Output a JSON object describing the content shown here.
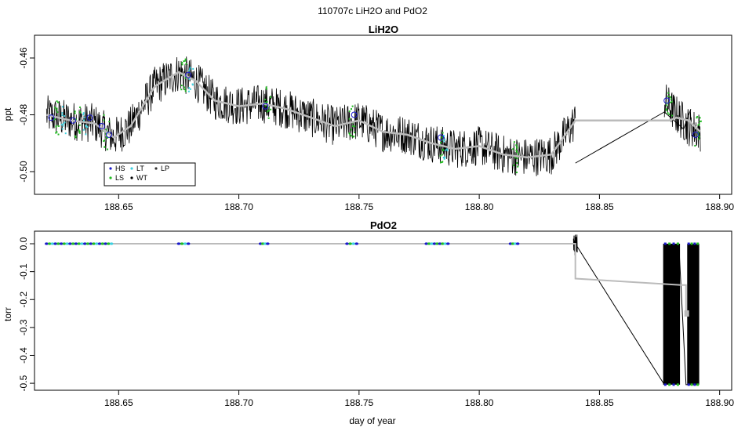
{
  "figure": {
    "supertitle": "110707c   LiH2O and PdO2",
    "xlabel": "day of year"
  },
  "chart_data": [
    {
      "type": "line",
      "title": "LiH2O",
      "ylabel": "ppt",
      "xlabel": "",
      "xlim": [
        188.615,
        188.905
      ],
      "ylim": [
        -0.508,
        -0.452
      ],
      "xticks": [
        188.65,
        188.7,
        188.75,
        188.8,
        188.85,
        188.9
      ],
      "xtick_labels": [
        "188.65",
        "188.70",
        "188.75",
        "188.80",
        "188.85",
        "188.90"
      ],
      "yticks": [
        -0.46,
        -0.48,
        -0.5
      ],
      "ytick_labels": [
        "-0.46",
        "-0.48",
        "-0.50"
      ],
      "legend": {
        "placement": "bottom-left",
        "entries": [
          {
            "label": "HS",
            "color": "#1a1acc"
          },
          {
            "label": "LT",
            "color": "#40d0e0"
          },
          {
            "label": "LP",
            "color": "#333333"
          },
          {
            "label": "LS",
            "color": "#22bb22"
          },
          {
            "label": "WT",
            "color": "#000000"
          }
        ]
      },
      "series": [
        {
          "role": "smoothed",
          "color": "#bbbbbb",
          "x": [
            188.62,
            188.63,
            188.64,
            188.648,
            188.655,
            188.665,
            188.675,
            188.682,
            188.69,
            188.7,
            188.71,
            188.72,
            188.73,
            188.74,
            188.75,
            188.76,
            188.77,
            188.78,
            188.79,
            188.8,
            188.81,
            188.82,
            188.83,
            188.84,
            188.879,
            188.882,
            188.887,
            188.892
          ],
          "y": [
            -0.48,
            -0.482,
            -0.483,
            -0.488,
            -0.484,
            -0.47,
            -0.465,
            -0.468,
            -0.475,
            -0.477,
            -0.476,
            -0.478,
            -0.481,
            -0.484,
            -0.482,
            -0.486,
            -0.487,
            -0.49,
            -0.492,
            -0.491,
            -0.494,
            -0.495,
            -0.494,
            -0.482,
            -0.482,
            -0.481,
            -0.482,
            -0.486
          ]
        },
        {
          "role": "raw",
          "color": "#000000",
          "noise_amplitude": 0.007,
          "x": [
            188.62,
            188.63,
            188.64,
            188.648,
            188.655,
            188.665,
            188.675,
            188.682,
            188.69,
            188.7,
            188.71,
            188.72,
            188.73,
            188.74,
            188.75,
            188.76,
            188.77,
            188.78,
            188.79,
            188.8,
            188.81,
            188.82,
            188.83,
            188.84,
            188.877,
            188.882,
            188.887,
            188.892
          ],
          "y": [
            -0.48,
            -0.482,
            -0.483,
            -0.488,
            -0.484,
            -0.47,
            -0.465,
            -0.468,
            -0.475,
            -0.477,
            -0.476,
            -0.478,
            -0.481,
            -0.484,
            -0.482,
            -0.486,
            -0.487,
            -0.49,
            -0.492,
            -0.491,
            -0.494,
            -0.495,
            -0.494,
            -0.482,
            -0.475,
            -0.48,
            -0.484,
            -0.486
          ]
        }
      ],
      "connector_lines": [
        {
          "color": "#000000",
          "x": [
            188.84,
            188.877
          ],
          "y": [
            -0.497,
            -0.479
          ]
        },
        {
          "color": "#000000",
          "x": [
            188.877,
            188.885
          ],
          "y": [
            -0.479,
            -0.485
          ]
        },
        {
          "color": "#000000",
          "x": [
            188.885,
            188.888
          ],
          "y": [
            -0.485,
            -0.478
          ]
        }
      ],
      "markers": [
        {
          "label": "HS",
          "x": 188.622,
          "y": -0.481
        },
        {
          "label": "HS",
          "x": 188.631,
          "y": -0.482
        },
        {
          "label": "HS",
          "x": 188.638,
          "y": -0.481
        },
        {
          "label": "HS",
          "x": 188.643,
          "y": -0.484
        },
        {
          "label": "HS",
          "x": 188.646,
          "y": -0.487
        },
        {
          "label": "HS",
          "x": 188.679,
          "y": -0.466
        },
        {
          "label": "HS",
          "x": 188.711,
          "y": -0.477
        },
        {
          "label": "HS",
          "x": 188.748,
          "y": -0.48
        },
        {
          "label": "HS",
          "x": 188.784,
          "y": -0.488
        },
        {
          "label": "HS",
          "x": 188.878,
          "y": -0.475
        },
        {
          "label": "HS",
          "x": 188.89,
          "y": -0.487
        }
      ],
      "ls_clusters": [
        188.624,
        188.633,
        188.645,
        188.677,
        188.712,
        188.747,
        188.784,
        188.815,
        188.879,
        188.891
      ],
      "lt_clusters": [
        188.627,
        188.636,
        188.68,
        188.786
      ]
    },
    {
      "type": "line",
      "title": "PdO2",
      "ylabel": "torr",
      "xlabel": "day of year",
      "xlim": [
        188.615,
        188.905
      ],
      "ylim": [
        -0.525,
        0.045
      ],
      "xticks": [
        188.65,
        188.7,
        188.75,
        188.8,
        188.85,
        188.9
      ],
      "xtick_labels": [
        "188.65",
        "188.70",
        "188.75",
        "188.80",
        "188.85",
        "188.90"
      ],
      "yticks": [
        0.0,
        -0.1,
        -0.2,
        -0.3,
        -0.4,
        -0.5
      ],
      "ytick_labels": [
        "0.0",
        "-0.1",
        "-0.2",
        "-0.3",
        "-0.4",
        "-0.5"
      ],
      "series": [
        {
          "role": "smoothed",
          "color": "#bbbbbb",
          "x": [
            188.62,
            188.84,
            188.84,
            188.884,
            188.886,
            188.886
          ],
          "y": [
            0.0,
            0.0,
            -0.125,
            -0.148,
            -0.148,
            -0.25
          ]
        },
        {
          "role": "raw",
          "color": "#000000",
          "x": [
            188.62,
            188.838,
            188.84,
            188.877,
            188.883,
            188.886,
            188.891
          ],
          "y": [
            0.0,
            0.0,
            -0.0,
            -0.505,
            0.0,
            -0.505,
            -0.505
          ]
        }
      ],
      "spike": {
        "x": 188.84,
        "ymin": -0.05,
        "ymax": 0.035
      },
      "blocks": [
        {
          "x0": 188.8765,
          "x1": 188.8835,
          "y0": -0.505,
          "y1": 0.0
        },
        {
          "x0": 188.8865,
          "x1": 188.8915,
          "y0": -0.505,
          "y1": 0.0
        }
      ],
      "gray_square": {
        "x": 188.8863,
        "y": -0.25
      },
      "dot_clusters": [
        {
          "x0": 188.62,
          "x1": 188.647,
          "y": 0.0
        },
        {
          "x0": 188.675,
          "x1": 188.679,
          "y": 0.0
        },
        {
          "x0": 188.709,
          "x1": 188.712,
          "y": 0.0
        },
        {
          "x0": 188.745,
          "x1": 188.749,
          "y": 0.0
        },
        {
          "x0": 188.778,
          "x1": 188.787,
          "y": 0.0
        },
        {
          "x0": 188.813,
          "x1": 188.816,
          "y": 0.0
        }
      ]
    }
  ]
}
